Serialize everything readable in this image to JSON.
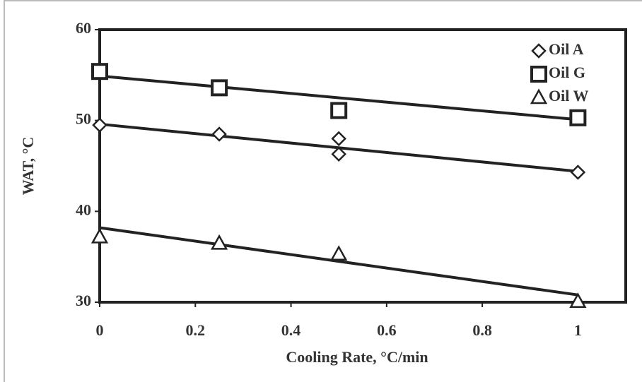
{
  "chart_data": {
    "type": "scatter",
    "xlabel": "Cooling Rate, °C/min",
    "ylabel": "WAT, °C",
    "xlim": [
      0,
      1.1
    ],
    "xticks": [
      0,
      0.2,
      0.4,
      0.6,
      0.8,
      1
    ],
    "ylim": [
      30,
      60
    ],
    "yticks": [
      30,
      40,
      50,
      60
    ],
    "legend": "top-right",
    "series": [
      {
        "name": "Oil A",
        "marker": "diamond",
        "color": "#222222",
        "x": [
          0,
          0.25,
          0.5,
          0.5,
          1
        ],
        "values": [
          49.5,
          48.5,
          48.0,
          46.3,
          44.3
        ]
      },
      {
        "name": "Oil G",
        "marker": "square",
        "color": "#222222",
        "x": [
          0,
          0.25,
          0.5,
          1
        ],
        "values": [
          55.4,
          53.6,
          51.1,
          50.3
        ]
      },
      {
        "name": "Oil W",
        "marker": "triangle",
        "color": "#222222",
        "x": [
          0,
          0.25,
          0.5,
          1
        ],
        "values": [
          37.2,
          36.5,
          35.3,
          30.1
        ]
      }
    ],
    "trend_lines": [
      {
        "x": [
          0,
          1
        ],
        "values": [
          49.6,
          44.4
        ]
      },
      {
        "x": [
          0,
          1
        ],
        "values": [
          54.9,
          50.1
        ]
      },
      {
        "x": [
          0,
          1
        ],
        "values": [
          38.2,
          30.8
        ]
      }
    ]
  }
}
